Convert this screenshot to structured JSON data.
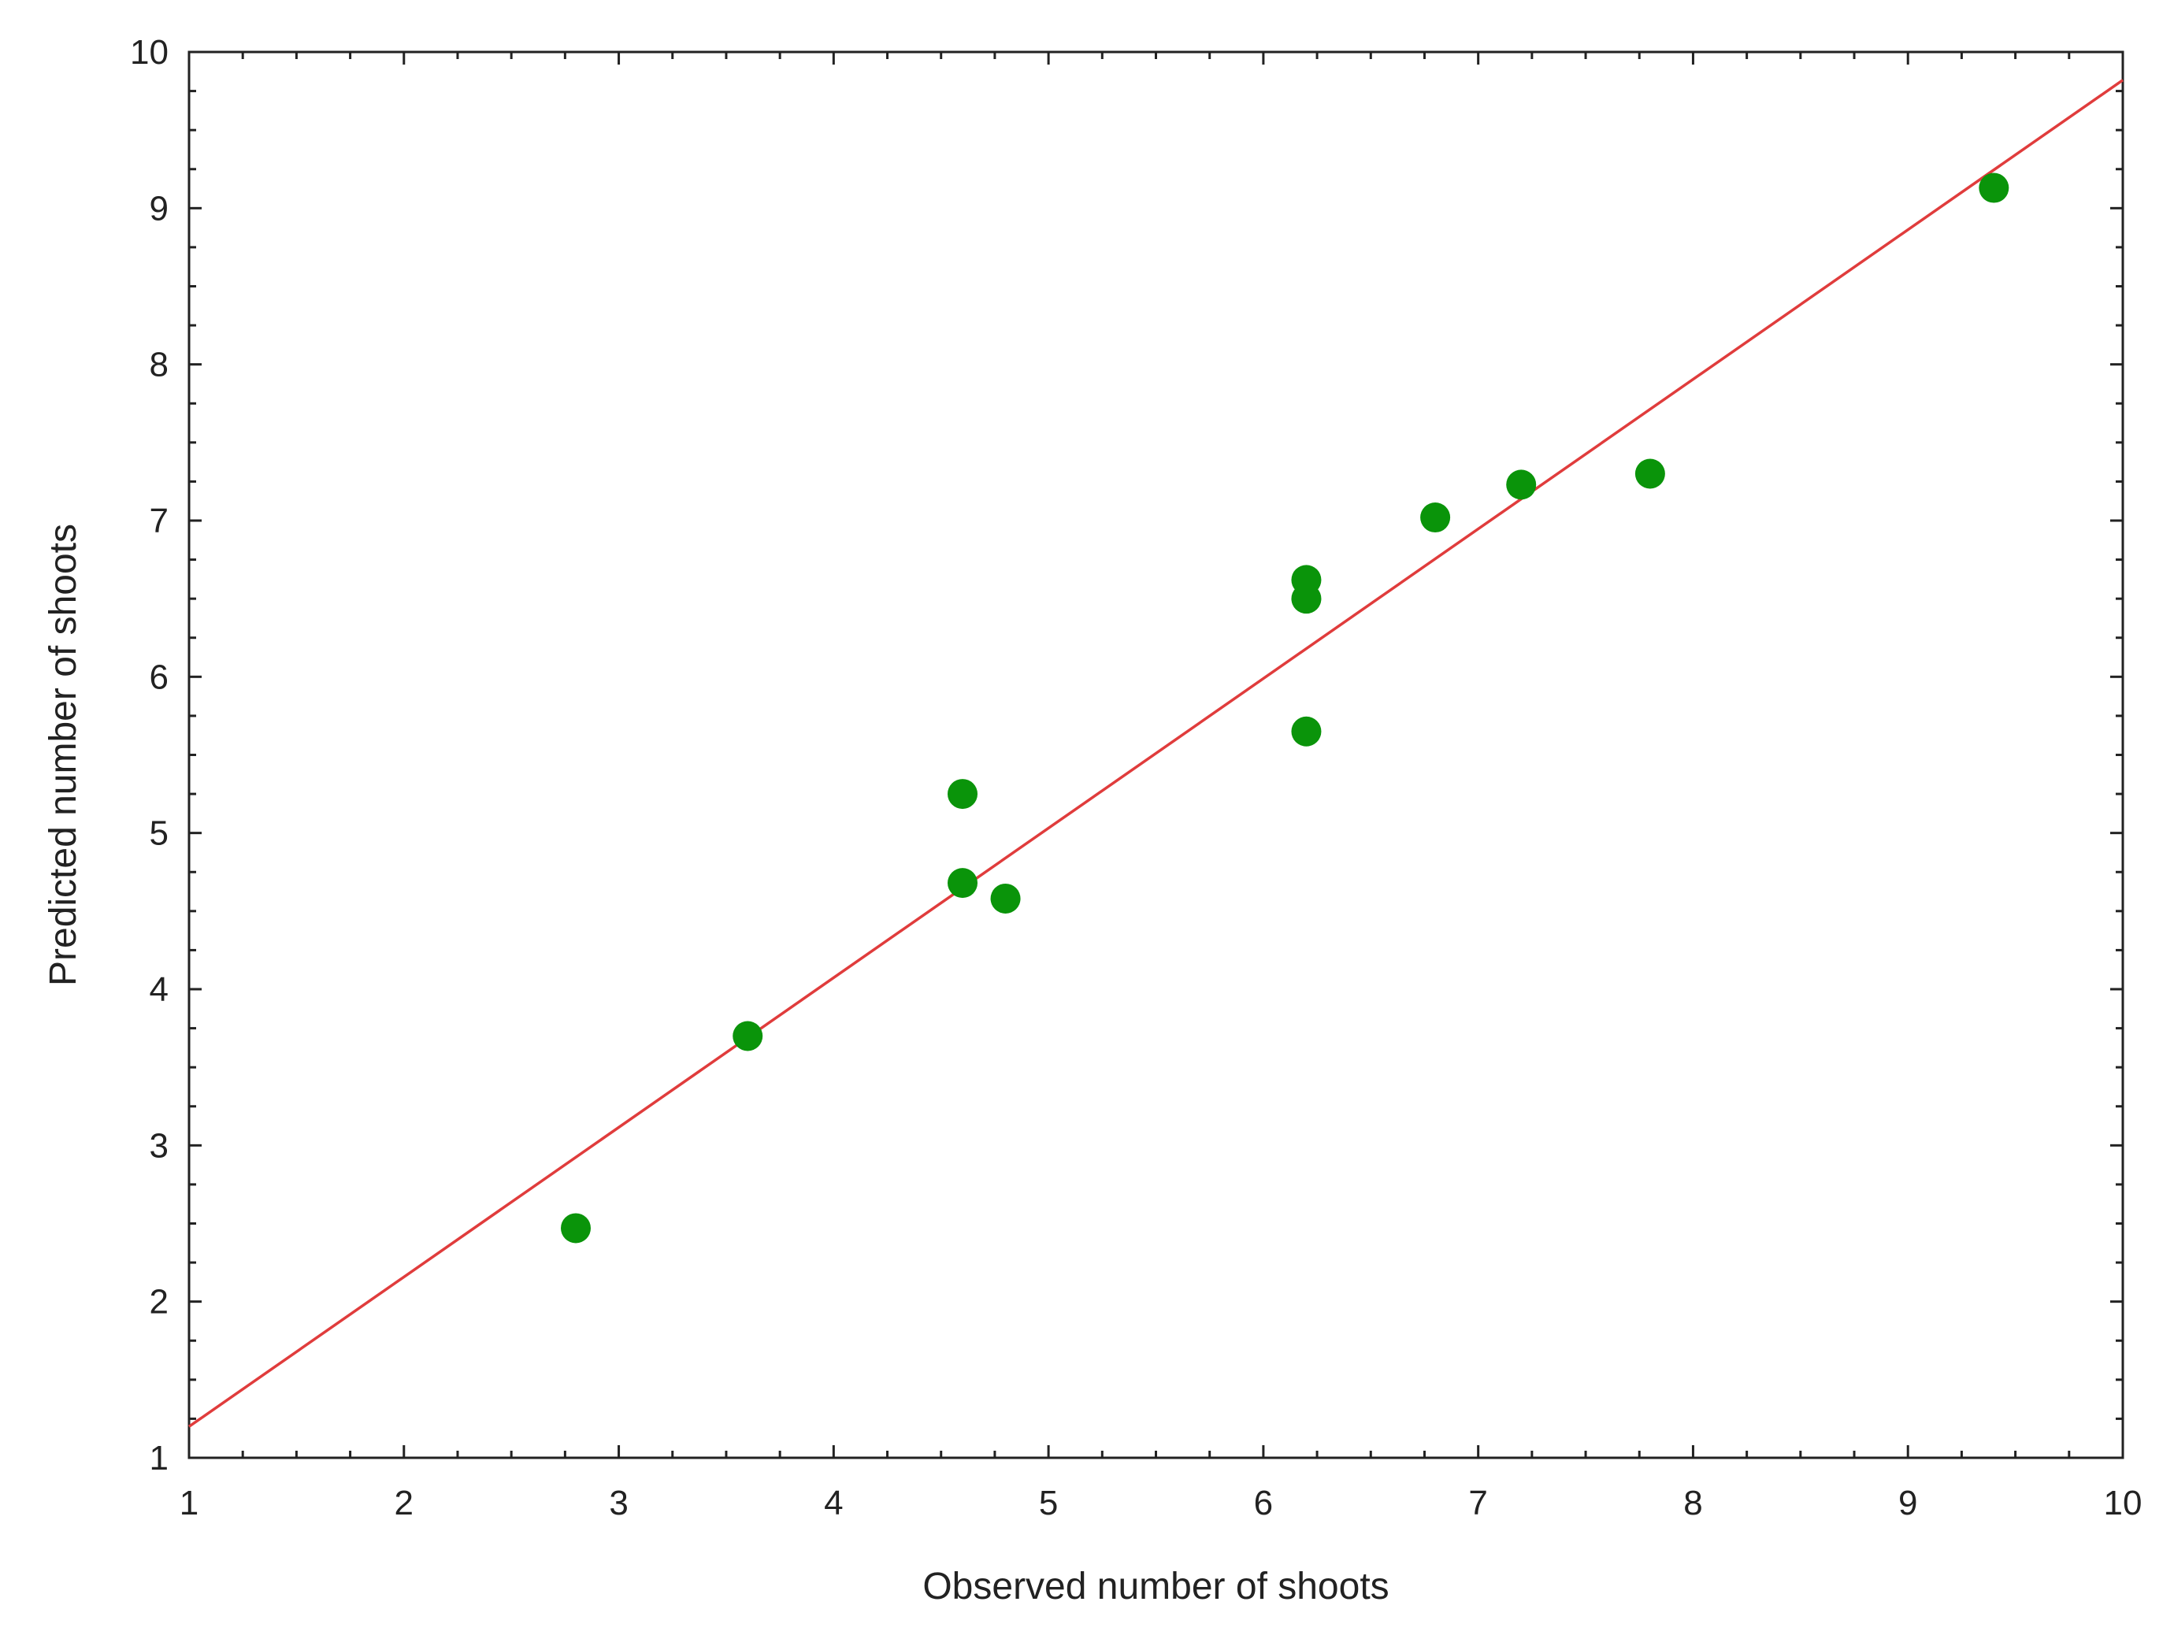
{
  "chart_data": {
    "type": "scatter",
    "title": "",
    "xlabel": "Observed number of shoots",
    "ylabel": "Predicted number of shoots",
    "xlim": [
      1,
      10
    ],
    "ylim": [
      1,
      10
    ],
    "x_ticks": [
      "1",
      "2",
      "3",
      "4",
      "5",
      "6",
      "7",
      "8",
      "9",
      "10"
    ],
    "y_ticks": [
      "1",
      "2",
      "3",
      "4",
      "5",
      "6",
      "7",
      "8",
      "9",
      "10"
    ],
    "grid": false,
    "legend": "none",
    "series": [
      {
        "points": [
          {
            "x": 2.8,
            "y": 2.47
          },
          {
            "x": 3.6,
            "y": 3.7
          },
          {
            "x": 4.6,
            "y": 5.25
          },
          {
            "x": 4.6,
            "y": 4.68
          },
          {
            "x": 4.8,
            "y": 4.58
          },
          {
            "x": 6.2,
            "y": 6.62
          },
          {
            "x": 6.2,
            "y": 6.5
          },
          {
            "x": 6.2,
            "y": 5.65
          },
          {
            "x": 6.8,
            "y": 7.02
          },
          {
            "x": 7.2,
            "y": 7.23
          },
          {
            "x": 7.8,
            "y": 7.3
          },
          {
            "x": 9.4,
            "y": 9.13
          }
        ],
        "color": "#0a940a"
      }
    ],
    "fit_line": {
      "x": [
        1,
        10
      ],
      "y": [
        1.2,
        9.82
      ],
      "color": "#e03c3c"
    },
    "colors": {
      "axis": "#222222",
      "marker": "#0a940a",
      "fit": "#e03c3c"
    }
  }
}
